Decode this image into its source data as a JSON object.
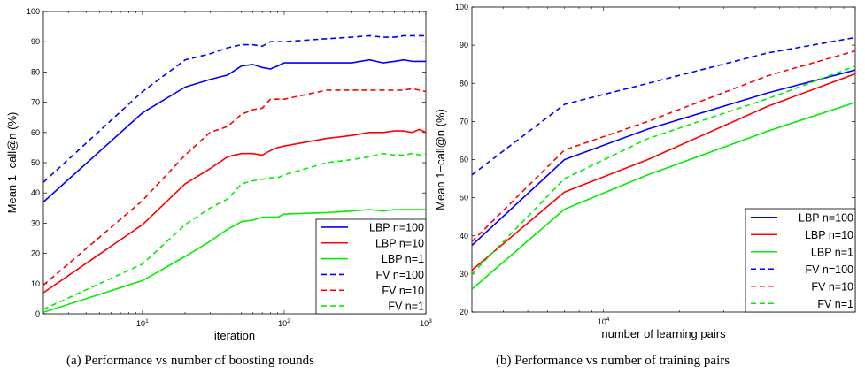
{
  "chart_data": [
    {
      "type": "line",
      "caption": "(a)  Performance vs number of boosting rounds",
      "xlabel": "iteration",
      "ylabel": "Mean 1−call@n (%)",
      "xscale": "log",
      "xlim": [
        2,
        1000
      ],
      "ylim": [
        0,
        100
      ],
      "yticks": [
        0,
        10,
        20,
        30,
        40,
        50,
        60,
        70,
        80,
        90,
        100
      ],
      "xticks": [
        {
          "value": 10,
          "base": "10",
          "exp": "1"
        },
        {
          "value": 100,
          "base": "10",
          "exp": "2"
        },
        {
          "value": 1000,
          "base": "10",
          "exp": "3"
        }
      ],
      "grid": false,
      "legend_position": "bottom-right",
      "series": [
        {
          "name": "LBP n=100",
          "color": "#0000ff",
          "dash": "solid",
          "x": [
            2,
            10,
            20,
            30,
            40,
            50,
            60,
            70,
            80,
            90,
            100,
            200,
            300,
            400,
            500,
            600,
            700,
            800,
            900,
            1000
          ],
          "y": [
            37,
            66.5,
            75,
            77.5,
            79,
            82,
            82.5,
            81.5,
            81,
            82,
            83,
            83,
            83,
            84,
            83,
            83.5,
            84,
            83.5,
            83.5,
            83.5
          ]
        },
        {
          "name": "LBP n=10",
          "color": "#ff0000",
          "dash": "solid",
          "x": [
            2,
            10,
            20,
            30,
            40,
            50,
            60,
            70,
            80,
            90,
            100,
            200,
            300,
            400,
            500,
            600,
            700,
            800,
            900,
            1000
          ],
          "y": [
            7,
            29.5,
            43,
            48,
            52,
            53,
            53,
            52.5,
            54,
            55,
            55.5,
            58,
            59,
            60,
            60,
            60.5,
            60.5,
            60,
            61,
            60
          ]
        },
        {
          "name": "LBP n=1",
          "color": "#00ee00",
          "dash": "solid",
          "x": [
            2,
            10,
            20,
            30,
            40,
            50,
            60,
            70,
            80,
            90,
            100,
            200,
            300,
            400,
            500,
            600,
            700,
            800,
            900,
            1000
          ],
          "y": [
            0.5,
            11,
            19,
            24,
            28,
            30.5,
            31,
            32,
            32,
            32,
            33,
            33.5,
            34,
            34.5,
            34,
            34.5,
            34.5,
            34.5,
            34.5,
            34.5
          ]
        },
        {
          "name": "FV n=100",
          "color": "#0000ff",
          "dash": "dash",
          "x": [
            2,
            10,
            20,
            30,
            40,
            50,
            60,
            70,
            80,
            90,
            100,
            200,
            300,
            400,
            500,
            600,
            700,
            800,
            900,
            1000
          ],
          "y": [
            43.5,
            73.5,
            84,
            86,
            88,
            89,
            89,
            88.5,
            90,
            90,
            90,
            91,
            91.5,
            92,
            91.5,
            91.5,
            92,
            92,
            92,
            92
          ]
        },
        {
          "name": "FV n=10",
          "color": "#ff0000",
          "dash": "dash",
          "x": [
            2,
            10,
            20,
            30,
            40,
            50,
            60,
            70,
            80,
            90,
            100,
            200,
            300,
            400,
            500,
            600,
            700,
            800,
            900,
            1000
          ],
          "y": [
            9.5,
            37.5,
            52.5,
            60,
            62,
            66,
            67.5,
            68,
            71,
            71,
            71,
            74,
            74,
            74,
            74,
            74,
            74,
            74.5,
            74,
            73.5
          ]
        },
        {
          "name": "FV n=1",
          "color": "#00ee00",
          "dash": "dash",
          "x": [
            2,
            10,
            20,
            30,
            40,
            50,
            60,
            70,
            80,
            90,
            100,
            200,
            300,
            400,
            500,
            600,
            700,
            800,
            900,
            1000
          ],
          "y": [
            1.5,
            16.5,
            29.5,
            35,
            38,
            43,
            44,
            44.5,
            45,
            45,
            46,
            50,
            51,
            52,
            53,
            52.5,
            52.5,
            53,
            52.5,
            53
          ]
        }
      ]
    },
    {
      "type": "line",
      "caption": "(b)  Performance vs number of training pairs",
      "xlabel": "number of learning pairs",
      "ylabel": "Mean 1−call@n (%)",
      "xscale": "log",
      "xlim": [
        3000,
        100000
      ],
      "ylim": [
        20,
        100
      ],
      "yticks": [
        20,
        30,
        40,
        50,
        60,
        70,
        80,
        90,
        100
      ],
      "xticks": [
        {
          "value": 10000,
          "base": "10",
          "exp": "4"
        }
      ],
      "grid": false,
      "legend_position": "bottom-right",
      "series": [
        {
          "name": "LBP n=100",
          "color": "#0000ff",
          "dash": "solid",
          "x": [
            3000,
            7000,
            15000,
            45000,
            100000
          ],
          "y": [
            37.5,
            60,
            68,
            77.5,
            83.5
          ]
        },
        {
          "name": "LBP n=10",
          "color": "#ff0000",
          "dash": "solid",
          "x": [
            3000,
            7000,
            15000,
            45000,
            100000
          ],
          "y": [
            31,
            51.5,
            60,
            74,
            82.5
          ]
        },
        {
          "name": "LBP n=1",
          "color": "#00ee00",
          "dash": "solid",
          "x": [
            3000,
            7000,
            15000,
            45000,
            100000
          ],
          "y": [
            26,
            47,
            56,
            67.5,
            75
          ]
        },
        {
          "name": "FV n=100",
          "color": "#0000ff",
          "dash": "dash",
          "x": [
            3000,
            7000,
            15000,
            45000,
            100000
          ],
          "y": [
            56,
            74.5,
            80,
            88,
            92
          ]
        },
        {
          "name": "FV n=10",
          "color": "#ff0000",
          "dash": "dash",
          "x": [
            3000,
            7000,
            15000,
            45000,
            100000
          ],
          "y": [
            38.5,
            62.5,
            70,
            82,
            88.5
          ]
        },
        {
          "name": "FV n=1",
          "color": "#00ee00",
          "dash": "dash",
          "x": [
            3000,
            7000,
            15000,
            45000,
            100000
          ],
          "y": [
            30,
            55,
            65.5,
            76,
            84.5
          ]
        }
      ]
    }
  ]
}
